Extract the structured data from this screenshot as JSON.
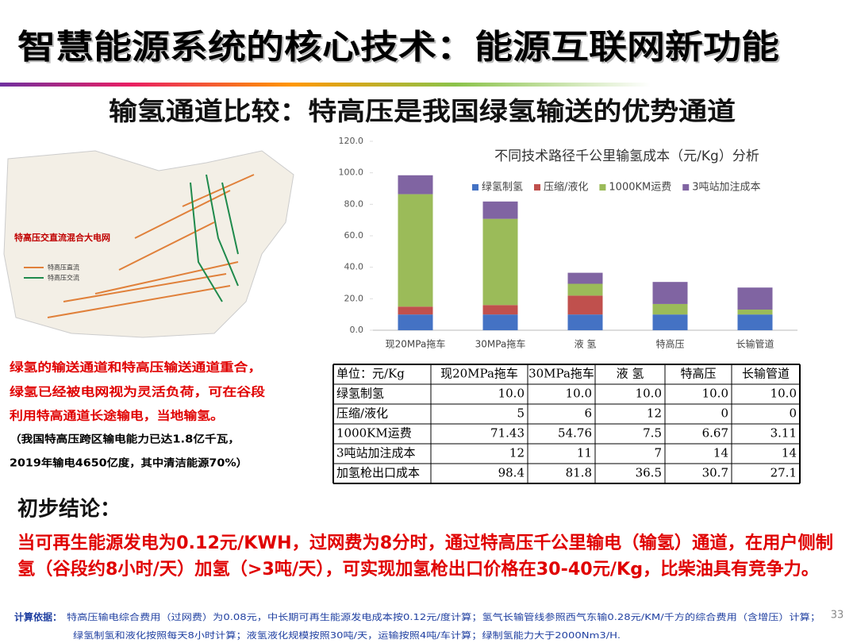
{
  "header": {
    "title": "智慧能源系统的核心技术：能源互联网新功能",
    "subtitle": "输氢通道比较：特高压是我国绿氢输送的优势通道"
  },
  "map": {
    "title": "特高压交直流混合大电网",
    "legend": [
      "特高压直流",
      "特高压交流"
    ]
  },
  "chart_data": {
    "type": "stacked_bar",
    "title": "不同技术路径千公里输氢成本（元/Kg）分析",
    "categories": [
      "现20MPa拖车",
      "30MPa拖车",
      "液 氢",
      "特高压",
      "长输管道"
    ],
    "series": [
      {
        "name": "绿氢制氢",
        "color": "#4472c4",
        "values": [
          10,
          10,
          10,
          10,
          10
        ]
      },
      {
        "name": "压缩/液化",
        "color": "#c0504d",
        "values": [
          5,
          6,
          12,
          0,
          0
        ]
      },
      {
        "name": "1000KM运费",
        "color": "#9bbb59",
        "values": [
          71.43,
          54.76,
          7.5,
          6.67,
          3.11
        ]
      },
      {
        "name": "3吨站加注成本",
        "color": "#8064a2",
        "values": [
          12,
          11,
          7,
          14,
          14
        ]
      }
    ],
    "ylim": [
      0,
      120
    ],
    "yticks": [
      {
        "value": 0,
        "label": "0.0"
      },
      {
        "value": 20,
        "label": "20.0"
      },
      {
        "value": 40,
        "label": "40.0"
      },
      {
        "value": 60,
        "label": "60.0"
      },
      {
        "value": 80,
        "label": "80.0"
      },
      {
        "value": 100,
        "label": "100.0"
      },
      {
        "value": 120,
        "label": "120.0"
      }
    ],
    "legend": "top"
  },
  "table": {
    "header": [
      "单位：元/Kg",
      "现20MPa拖车",
      "30MPa拖车",
      "液 氢",
      "特高压",
      "长输管道"
    ],
    "rows": [
      [
        "绿氢制氢",
        "10.0",
        "10.0",
        "10.0",
        "10.0",
        "10.0"
      ],
      [
        "压缩/液化",
        "5",
        "6",
        "12",
        "0",
        "0"
      ],
      [
        "1000KM运费",
        "71.43",
        "54.76",
        "7.5",
        "6.67",
        "3.11"
      ],
      [
        "3吨站加注成本",
        "12",
        "11",
        "7",
        "14",
        "14"
      ],
      [
        "加氢枪出口成本",
        "98.4",
        "81.8",
        "36.5",
        "30.7",
        "27.1"
      ]
    ]
  },
  "left_text": {
    "lines": [
      "绿氢的输送通道和特高压输送通道重合，",
      "绿氢已经被电网视为灵活负荷，可在谷段",
      "利用特高通道长途输电，当地输氢。"
    ],
    "notes": [
      "（我国特高压跨区输电能力已达1.8亿千瓦，",
      "2019年输电4650亿度，其中清洁能源70%）"
    ]
  },
  "conclusion": {
    "heading": "初步结论：",
    "lines": [
      "当可再生能源发电为0.12元/KWH，过网费为8分时，通过特高压千公里输电（输氢）通道，在用户侧制",
      "氢（谷段约8小时/天）加氢（>3吨/天），可实现加氢枪出口价格在30-40元/Kg，比柴油具有竞争力。"
    ]
  },
  "footnote": {
    "label": "计算依据：",
    "lines": [
      "特高压输电综合费用（过网费）为0.08元，中长期可再生能源发电成本按0.12元/度计算；氢气长输管线参照西气东输0.28元/KM/千方的综合费用（含增压）计算；",
      "绿氢制氢和液化按照每天8小时计算；液氢液化规模按照30吨/天，运输按照4吨/车计算；绿制氢能力大于2000Nm3/H."
    ]
  },
  "page_number": "33"
}
